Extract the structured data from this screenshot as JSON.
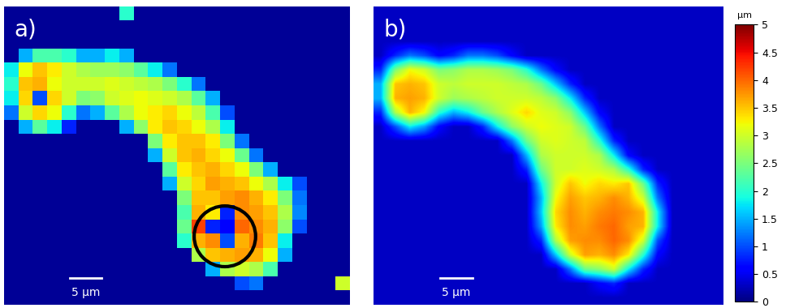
{
  "chart_data": [
    {
      "type": "heatmap",
      "title": "a)",
      "xlim": [
        0,
        54
      ],
      "ylim": [
        47.25,
        0
      ],
      "tick_labels": false,
      "scale_bar": {
        "length": 5,
        "label": "5 µm"
      },
      "highlight": {
        "x": 34.5,
        "y": 36.4,
        "radius": 4.8
      },
      "cells": [
        [
          0.1,
          0.1,
          0.1,
          0.1,
          0.1,
          0.1,
          0.1,
          0.1,
          2.0,
          0.1,
          0.1,
          0.1,
          0.1,
          0.1,
          0.1,
          0.1,
          0.1,
          0.1,
          0.1,
          0.1,
          0.1,
          0.1,
          0.1,
          0.1
        ],
        [
          0.1,
          0.1,
          0.1,
          0.1,
          0.1,
          0.1,
          0.1,
          0.1,
          0.1,
          0.1,
          0.1,
          0.1,
          0.1,
          0.1,
          0.1,
          0.1,
          0.1,
          0.1,
          0.1,
          0.1,
          0.1,
          0.1,
          0.1,
          0.1
        ],
        [
          0.1,
          0.1,
          0.1,
          0.1,
          0.1,
          0.1,
          0.1,
          0.1,
          0.1,
          0.1,
          0.1,
          0.1,
          0.1,
          0.1,
          0.1,
          0.1,
          0.1,
          0.1,
          0.1,
          0.1,
          0.1,
          0.1,
          0.1,
          0.1
        ],
        [
          0.1,
          1.5,
          2.2,
          2.2,
          2.0,
          1.5,
          1.5,
          1.8,
          1.5,
          0.1,
          0.1,
          0.1,
          0.1,
          0.1,
          0.1,
          0.1,
          0.1,
          0.1,
          0.1,
          0.1,
          0.1,
          0.1,
          0.1,
          0.1
        ],
        [
          1.8,
          3.2,
          3.5,
          3.3,
          3.0,
          2.8,
          2.7,
          2.7,
          2.6,
          2.3,
          1.8,
          1.2,
          0.1,
          0.1,
          0.1,
          0.1,
          0.1,
          0.1,
          0.1,
          0.1,
          0.1,
          0.1,
          0.1,
          0.1
        ],
        [
          2.0,
          3.5,
          3.6,
          3.2,
          3.0,
          3.0,
          3.0,
          3.1,
          3.0,
          2.9,
          2.8,
          2.5,
          2.0,
          1.2,
          0.1,
          0.1,
          0.1,
          0.1,
          0.1,
          0.1,
          0.1,
          0.1,
          0.1,
          0.1
        ],
        [
          1.8,
          3.4,
          1.0,
          3.4,
          3.0,
          2.5,
          2.6,
          3.0,
          3.1,
          3.2,
          3.1,
          3.0,
          2.8,
          2.3,
          1.5,
          0.1,
          0.1,
          0.1,
          0.1,
          0.1,
          0.1,
          0.1,
          0.1,
          0.1
        ],
        [
          1.2,
          3.0,
          3.4,
          3.2,
          2.0,
          1.2,
          1.5,
          2.3,
          2.8,
          3.2,
          3.3,
          3.4,
          3.2,
          2.9,
          2.2,
          1.0,
          0.1,
          0.1,
          0.1,
          0.1,
          0.1,
          0.1,
          0.1,
          0.1
        ],
        [
          0.1,
          1.5,
          2.3,
          1.8,
          0.8,
          0.1,
          0.1,
          0.1,
          1.5,
          2.6,
          3.3,
          3.5,
          3.4,
          3.2,
          2.8,
          1.8,
          0.1,
          0.1,
          0.1,
          0.1,
          0.1,
          0.1,
          0.1,
          0.1
        ],
        [
          0.1,
          0.1,
          0.1,
          0.1,
          0.1,
          0.1,
          0.1,
          0.1,
          0.1,
          0.1,
          2.5,
          3.3,
          3.5,
          3.5,
          3.3,
          2.5,
          1.2,
          0.1,
          0.1,
          0.1,
          0.1,
          0.1,
          0.1,
          0.1
        ],
        [
          0.1,
          0.1,
          0.1,
          0.1,
          0.1,
          0.1,
          0.1,
          0.1,
          0.1,
          0.1,
          1.5,
          3.0,
          3.5,
          3.6,
          3.4,
          3.2,
          2.4,
          1.2,
          0.1,
          0.1,
          0.1,
          0.1,
          0.1,
          0.1
        ],
        [
          0.1,
          0.1,
          0.1,
          0.1,
          0.1,
          0.1,
          0.1,
          0.1,
          0.1,
          0.1,
          0.1,
          2.3,
          3.3,
          3.5,
          3.6,
          3.4,
          3.2,
          2.5,
          1.5,
          0.1,
          0.1,
          0.1,
          0.1,
          0.1
        ],
        [
          0.1,
          0.1,
          0.1,
          0.1,
          0.1,
          0.1,
          0.1,
          0.1,
          0.1,
          0.1,
          0.1,
          1.5,
          3.0,
          3.4,
          3.7,
          3.6,
          3.5,
          3.2,
          2.8,
          1.8,
          1.0,
          0.1,
          0.1,
          0.1
        ],
        [
          0.1,
          0.1,
          0.1,
          0.1,
          0.1,
          0.1,
          0.1,
          0.1,
          0.1,
          0.1,
          0.1,
          0.1,
          2.5,
          3.5,
          3.5,
          3.7,
          3.8,
          3.6,
          3.3,
          2.5,
          1.2,
          0.1,
          0.1,
          0.1
        ],
        [
          0.1,
          0.1,
          0.1,
          0.1,
          0.1,
          0.1,
          0.1,
          0.1,
          0.1,
          0.1,
          0.1,
          0.1,
          2.2,
          3.6,
          3.3,
          0.8,
          3.8,
          3.7,
          3.5,
          2.8,
          1.3,
          0.1,
          0.1,
          0.1
        ],
        [
          0.1,
          0.1,
          0.1,
          0.1,
          0.1,
          0.1,
          0.1,
          0.1,
          0.1,
          0.1,
          0.1,
          0.1,
          2.4,
          4.2,
          0.8,
          0.6,
          4.0,
          3.8,
          3.6,
          2.6,
          1.0,
          0.1,
          0.1,
          0.1
        ],
        [
          0.1,
          0.1,
          0.1,
          0.1,
          0.1,
          0.1,
          0.1,
          0.1,
          0.1,
          0.1,
          0.1,
          0.1,
          2.0,
          3.6,
          3.8,
          1.0,
          3.6,
          3.9,
          3.5,
          1.8,
          0.1,
          0.1,
          0.1,
          0.1
        ],
        [
          0.1,
          0.1,
          0.1,
          0.1,
          0.1,
          0.1,
          0.1,
          0.1,
          0.1,
          0.1,
          0.1,
          0.1,
          0.1,
          2.8,
          3.5,
          3.6,
          3.7,
          3.6,
          3.2,
          1.5,
          0.1,
          0.1,
          0.1,
          0.1
        ],
        [
          0.1,
          0.1,
          0.1,
          0.1,
          0.1,
          0.1,
          0.1,
          0.1,
          0.1,
          0.1,
          0.1,
          0.1,
          0.1,
          0.1,
          1.5,
          2.8,
          3.0,
          2.8,
          2.2,
          0.1,
          0.1,
          0.1,
          0.1,
          0.1
        ],
        [
          0.1,
          0.1,
          0.1,
          0.1,
          0.1,
          0.1,
          0.1,
          0.1,
          0.1,
          0.1,
          0.1,
          0.1,
          0.1,
          0.1,
          0.1,
          0.1,
          1.0,
          1.2,
          0.1,
          0.1,
          0.1,
          0.1,
          0.1,
          3.0
        ],
        [
          0.1,
          0.1,
          0.1,
          0.1,
          0.1,
          0.1,
          0.1,
          0.1,
          0.1,
          0.1,
          0.1,
          0.1,
          0.1,
          0.1,
          0.1,
          0.1,
          0.1,
          0.1,
          0.1,
          0.1,
          0.1,
          0.1,
          0.1,
          0.1
        ]
      ]
    },
    {
      "type": "heatmap",
      "title": "b)",
      "xlim": [
        0,
        54
      ],
      "ylim": [
        47.25,
        0
      ],
      "tick_labels": false,
      "scale_bar": {
        "length": 5,
        "label": "5 µm"
      },
      "cells": [
        [
          0.3,
          0.3,
          0.3,
          0.3,
          0.3,
          0.3,
          0.3,
          0.3,
          0.3,
          0.3,
          0.3,
          0.3,
          0.3,
          0.3,
          0.3,
          0.3,
          0.3,
          0.3,
          0.3,
          0.3,
          0.3,
          0.3,
          0.3,
          0.3
        ],
        [
          0.3,
          0.3,
          0.3,
          0.3,
          0.3,
          0.3,
          0.3,
          0.3,
          0.3,
          0.3,
          0.3,
          0.3,
          0.3,
          0.3,
          0.3,
          0.3,
          0.3,
          0.3,
          0.3,
          0.3,
          0.3,
          0.3,
          0.3,
          0.3
        ],
        [
          0.3,
          0.3,
          0.3,
          0.3,
          0.3,
          0.3,
          0.3,
          0.3,
          0.3,
          0.3,
          0.3,
          0.3,
          0.3,
          0.3,
          0.3,
          0.3,
          0.3,
          0.3,
          0.3,
          0.3,
          0.3,
          0.3,
          0.3,
          0.3
        ],
        [
          0.3,
          0.8,
          1.2,
          1.0,
          0.6,
          0.8,
          1.2,
          1.2,
          1.0,
          0.6,
          0.3,
          0.3,
          0.3,
          0.3,
          0.3,
          0.3,
          0.3,
          0.3,
          0.3,
          0.3,
          0.3,
          0.3,
          0.3,
          0.3
        ],
        [
          0.8,
          2.5,
          3.2,
          3.0,
          2.5,
          2.6,
          2.8,
          2.8,
          2.7,
          2.5,
          2.0,
          1.2,
          0.6,
          0.3,
          0.3,
          0.3,
          0.3,
          0.3,
          0.3,
          0.3,
          0.3,
          0.3,
          0.3,
          0.3
        ],
        [
          1.5,
          3.5,
          3.6,
          3.5,
          3.0,
          2.9,
          3.0,
          3.0,
          3.0,
          2.9,
          2.8,
          2.4,
          1.6,
          0.8,
          0.3,
          0.3,
          0.3,
          0.3,
          0.3,
          0.3,
          0.3,
          0.3,
          0.3,
          0.3
        ],
        [
          1.5,
          3.6,
          3.7,
          3.6,
          3.0,
          2.7,
          2.8,
          2.9,
          3.0,
          3.0,
          3.0,
          2.9,
          2.6,
          1.8,
          0.8,
          0.3,
          0.3,
          0.3,
          0.3,
          0.3,
          0.3,
          0.3,
          0.3,
          0.3
        ],
        [
          0.8,
          2.8,
          3.6,
          3.2,
          2.0,
          1.5,
          1.8,
          2.4,
          2.8,
          3.1,
          3.4,
          3.1,
          3.0,
          2.6,
          1.6,
          0.6,
          0.3,
          0.3,
          0.3,
          0.3,
          0.3,
          0.3,
          0.3,
          0.3
        ],
        [
          0.3,
          1.0,
          1.8,
          1.4,
          0.6,
          0.3,
          0.3,
          0.8,
          1.8,
          2.6,
          3.0,
          3.2,
          3.1,
          3.0,
          2.4,
          1.2,
          0.3,
          0.3,
          0.3,
          0.3,
          0.3,
          0.3,
          0.3,
          0.3
        ],
        [
          0.3,
          0.3,
          0.3,
          0.3,
          0.3,
          0.3,
          0.3,
          0.3,
          0.3,
          1.2,
          2.4,
          3.0,
          3.1,
          3.0,
          2.9,
          2.0,
          0.8,
          0.3,
          0.3,
          0.3,
          0.3,
          0.3,
          0.3,
          0.3
        ],
        [
          0.3,
          0.3,
          0.3,
          0.3,
          0.3,
          0.3,
          0.3,
          0.3,
          0.3,
          0.3,
          1.5,
          2.8,
          3.0,
          3.0,
          3.0,
          2.8,
          1.8,
          0.6,
          0.3,
          0.3,
          0.3,
          0.3,
          0.3,
          0.3
        ],
        [
          0.3,
          0.3,
          0.3,
          0.3,
          0.3,
          0.3,
          0.3,
          0.3,
          0.3,
          0.3,
          0.8,
          2.4,
          3.0,
          3.0,
          3.1,
          3.0,
          2.8,
          2.0,
          0.8,
          0.3,
          0.3,
          0.3,
          0.3,
          0.3
        ],
        [
          0.3,
          0.3,
          0.3,
          0.3,
          0.3,
          0.3,
          0.3,
          0.3,
          0.3,
          0.3,
          0.3,
          1.8,
          3.0,
          3.5,
          3.2,
          3.4,
          3.3,
          3.5,
          2.4,
          0.8,
          0.3,
          0.3,
          0.3,
          0.3
        ],
        [
          0.3,
          0.3,
          0.3,
          0.3,
          0.3,
          0.3,
          0.3,
          0.3,
          0.3,
          0.3,
          0.3,
          1.5,
          3.2,
          3.7,
          3.5,
          3.6,
          3.8,
          3.6,
          3.0,
          1.2,
          0.3,
          0.3,
          0.3,
          0.3
        ],
        [
          0.3,
          0.3,
          0.3,
          0.3,
          0.3,
          0.3,
          0.3,
          0.3,
          0.3,
          0.3,
          0.3,
          1.6,
          3.4,
          3.8,
          3.6,
          3.8,
          3.9,
          3.8,
          3.6,
          1.8,
          0.3,
          0.3,
          0.3,
          0.3
        ],
        [
          0.3,
          0.3,
          0.3,
          0.3,
          0.3,
          0.3,
          0.3,
          0.3,
          0.3,
          0.3,
          0.3,
          1.4,
          3.3,
          3.8,
          3.7,
          3.9,
          4.0,
          3.7,
          3.6,
          1.8,
          0.3,
          0.3,
          0.3,
          0.3
        ],
        [
          0.3,
          0.3,
          0.3,
          0.3,
          0.3,
          0.3,
          0.3,
          0.3,
          0.3,
          0.3,
          0.3,
          0.8,
          2.8,
          3.7,
          3.8,
          3.8,
          4.0,
          3.8,
          3.0,
          1.0,
          0.3,
          0.3,
          0.3,
          0.3
        ],
        [
          0.3,
          0.3,
          0.3,
          0.3,
          0.3,
          0.3,
          0.3,
          0.3,
          0.3,
          0.3,
          0.3,
          0.3,
          1.6,
          3.0,
          3.7,
          3.6,
          3.8,
          3.3,
          2.0,
          0.6,
          0.3,
          0.3,
          0.3,
          0.3
        ],
        [
          0.3,
          0.3,
          0.3,
          0.3,
          0.3,
          0.3,
          0.3,
          0.3,
          0.3,
          0.3,
          0.3,
          0.3,
          0.3,
          1.2,
          2.4,
          2.6,
          3.0,
          1.8,
          0.8,
          0.3,
          0.3,
          0.3,
          0.3,
          0.3
        ],
        [
          0.3,
          0.3,
          0.3,
          0.3,
          0.3,
          0.3,
          0.3,
          0.3,
          0.3,
          0.3,
          0.3,
          0.3,
          0.3,
          0.3,
          0.3,
          0.6,
          0.8,
          0.3,
          0.3,
          0.3,
          0.3,
          0.3,
          0.3,
          0.3
        ],
        [
          0.3,
          0.3,
          0.3,
          0.3,
          0.3,
          0.3,
          0.3,
          0.3,
          0.3,
          0.3,
          0.3,
          0.3,
          0.3,
          0.3,
          0.3,
          0.3,
          0.3,
          0.3,
          0.3,
          0.3,
          0.3,
          0.3,
          0.3,
          0.3
        ]
      ]
    }
  ],
  "colorbar": {
    "label": "µm",
    "color": "jet",
    "range": [
      0,
      5
    ],
    "ticks": [
      0,
      0.5,
      1,
      1.5,
      2,
      2.5,
      3,
      3.5,
      4,
      4.5,
      5
    ]
  }
}
